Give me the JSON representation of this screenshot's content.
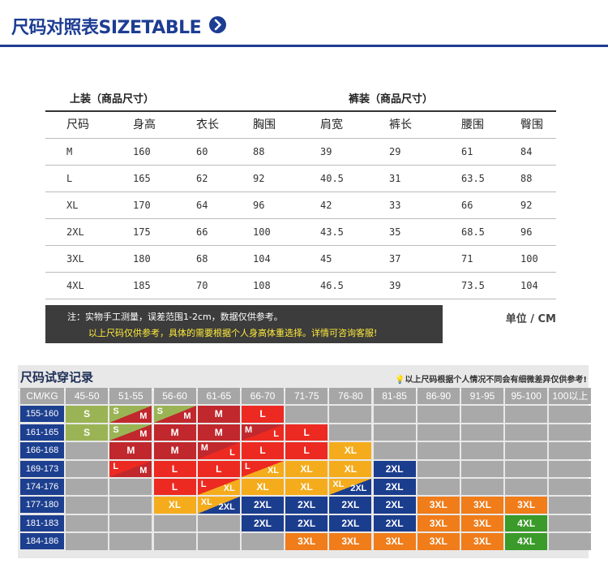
{
  "header": {
    "title": "尺码对照表SIZETABLE"
  },
  "sizetable": {
    "caption_top": "上装（商品尺寸）",
    "caption_bottom": "裤装（商品尺寸）",
    "columns": [
      "尺码",
      "身高",
      "衣长",
      "胸围",
      "肩宽",
      "裤长",
      "腰围",
      "臀围"
    ],
    "rows": [
      [
        "M",
        "160",
        "60",
        "88",
        "39",
        "29",
        "61",
        "84"
      ],
      [
        "L",
        "165",
        "62",
        "92",
        "40.5",
        "31",
        "63.5",
        "88"
      ],
      [
        "XL",
        "170",
        "64",
        "96",
        "42",
        "33",
        "66",
        "92"
      ],
      [
        "2XL",
        "175",
        "66",
        "100",
        "43.5",
        "35",
        "68.5",
        "96"
      ],
      [
        "3XL",
        "180",
        "68",
        "104",
        "45",
        "37",
        "71",
        "100"
      ],
      [
        "4XL",
        "185",
        "70",
        "108",
        "46.5",
        "39",
        "73.5",
        "104"
      ]
    ],
    "note_line1": "注：实物手工测量，误差范围1-2cm，数据仅供参考。",
    "note_line2": "以上尺码仅供参考，具体的需要根据个人身高体重选择。详情可咨询客服!",
    "unit": "单位 / CM"
  },
  "fitting": {
    "title": "尺码试穿记录",
    "hint": "以上尺码根据个人情况不同会有细微差异仅供参考!",
    "corner": "CM/KG",
    "weights": [
      "45-50",
      "51-55",
      "56-60",
      "61-65",
      "66-70",
      "71-75",
      "76-80",
      "81-85",
      "86-90",
      "91-95",
      "95-100",
      "100以上"
    ],
    "heights": [
      "155-160",
      "161-165",
      "166-168",
      "169-173",
      "174-176",
      "177-180",
      "181-183",
      "184-186"
    ],
    "colors": {
      "S": "#9ab455",
      "M": "#c0282d",
      "L": "#ec2a22",
      "XL": "#f5ac1c",
      "2XL": "#1b3d8e",
      "3XL": "#f07c1a",
      "4XL": "#3a9a2a",
      "empty": "#a9a9a9"
    },
    "cells": [
      [
        "S",
        "S/M",
        "S/M",
        "M",
        "L",
        "",
        "",
        "",
        "",
        "",
        "",
        ""
      ],
      [
        "S",
        "S/M",
        "M",
        "M",
        "M/L",
        "L",
        "",
        "",
        "",
        "",
        "",
        ""
      ],
      [
        "",
        "M",
        "M",
        "M/L",
        "L",
        "L",
        "XL",
        "",
        "",
        "",
        "",
        ""
      ],
      [
        "",
        "L/M",
        "L",
        "L",
        "L/XL",
        "XL",
        "XL",
        "2XL",
        "",
        "",
        "",
        ""
      ],
      [
        "",
        "",
        "L",
        "L/XL",
        "XL",
        "XL",
        "XL/2XL",
        "2XL",
        "",
        "",
        "",
        ""
      ],
      [
        "",
        "",
        "XL",
        "XL/2XL",
        "2XL",
        "2XL",
        "2XL",
        "2XL",
        "3XL",
        "3XL",
        "3XL",
        ""
      ],
      [
        "",
        "",
        "",
        "",
        "2XL",
        "2XL",
        "2XL",
        "2XL",
        "3XL",
        "3XL",
        "4XL",
        ""
      ],
      [
        "",
        "",
        "",
        "",
        "",
        "3XL",
        "3XL",
        "3XL",
        "3XL",
        "3XL",
        "4XL",
        ""
      ]
    ]
  }
}
